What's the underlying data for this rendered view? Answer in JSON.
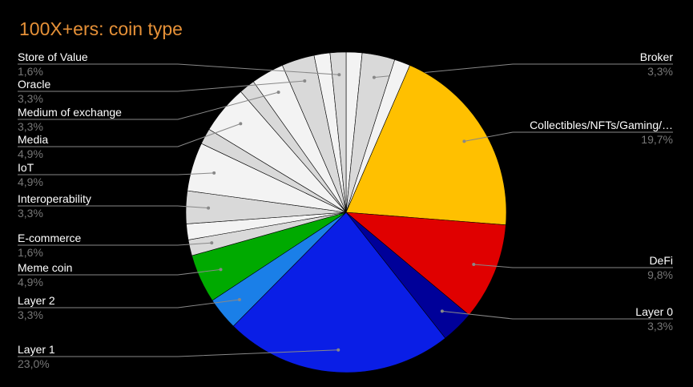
{
  "chart_data": {
    "type": "pie",
    "title": "100X+ers: coin type",
    "categories": [
      null,
      "Broker",
      null,
      "Collectibles/NFTs/Gaming/…",
      "DeFi",
      "Layer 0",
      "Layer 1",
      "Layer 2",
      "Meme coin",
      "E-commerce",
      null,
      "Interoperability",
      "IoT",
      null,
      "Media",
      null,
      "Medium of exchange",
      "Oracle",
      null,
      "Store of Value"
    ],
    "values": [
      1.6,
      3.3,
      1.6,
      19.7,
      9.8,
      3.3,
      23.0,
      3.3,
      4.9,
      1.6,
      1.6,
      3.3,
      4.9,
      1.6,
      4.9,
      1.6,
      3.3,
      3.3,
      1.6,
      1.6
    ],
    "value_labels": [
      null,
      "3,3%",
      null,
      "19,7%",
      "9,8%",
      "3,3%",
      "23,0%",
      "3,3%",
      "4,9%",
      "1,6%",
      null,
      "3,3%",
      "4,9%",
      null,
      "4,9%",
      null,
      "3,3%",
      "3,3%",
      null,
      "1,6%"
    ],
    "colors": [
      "#f3f3f3",
      "#d9d9d9",
      "#f3f3f3",
      "#ffc000",
      "#e00000",
      "#000099",
      "#0a1ee6",
      "#1a7fe8",
      "#00aa00",
      "#d9d9d9",
      "#f3f3f3",
      "#d9d9d9",
      "#f3f3f3",
      "#d9d9d9",
      "#f3f3f3",
      "#d9d9d9",
      "#f3f3f3",
      "#d9d9d9",
      "#f3f3f3",
      "#d9d9d9"
    ]
  }
}
